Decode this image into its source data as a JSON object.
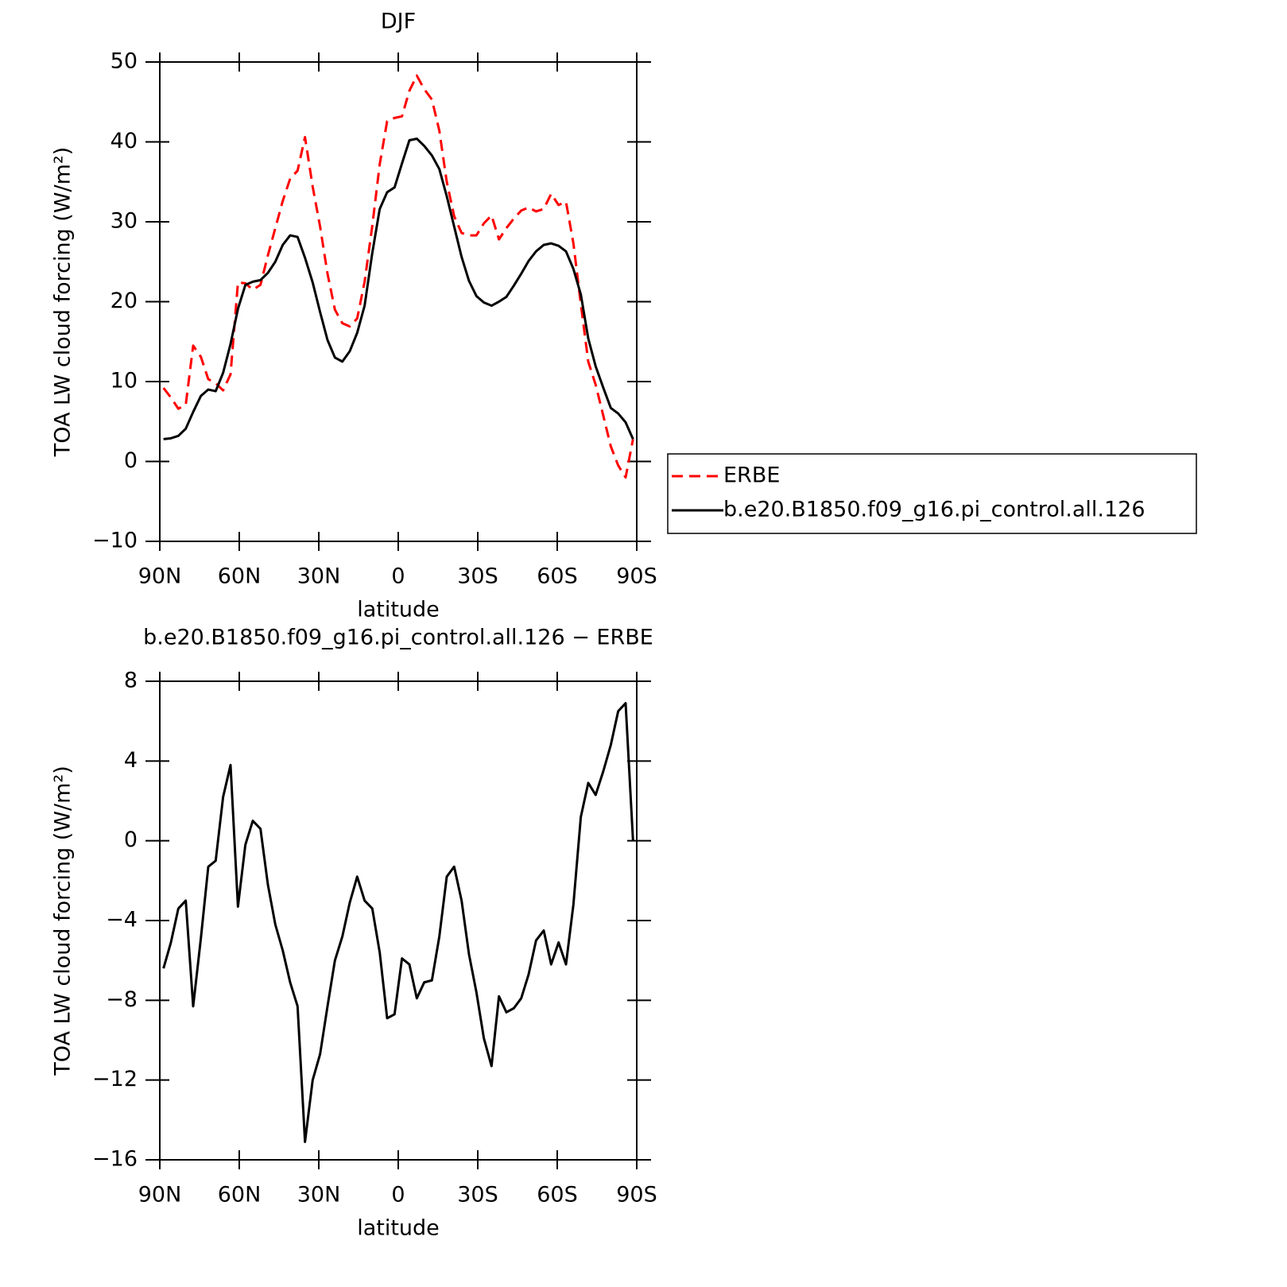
{
  "chart_data": [
    {
      "type": "line",
      "title": "DJF",
      "xlabel": "latitude",
      "ylabel": "TOA LW cloud forcing (W/m²)",
      "xlim": [
        90,
        -90
      ],
      "xticks": [
        {
          "value": 90,
          "label": "90N"
        },
        {
          "value": 60,
          "label": "60N"
        },
        {
          "value": 30,
          "label": "30N"
        },
        0,
        {
          "value": -30,
          "label": "30S"
        },
        {
          "value": -60,
          "label": "60S"
        },
        {
          "value": -90,
          "label": "90S"
        }
      ],
      "ylim": [
        -10,
        50
      ],
      "yticks": [
        {
          "value": -10,
          "label": "−10"
        },
        0,
        10,
        20,
        30,
        40,
        50
      ],
      "legend": "right",
      "x": [
        88.6,
        85.8,
        83.0,
        80.2,
        77.4,
        74.5,
        71.7,
        68.9,
        66.1,
        63.3,
        60.5,
        57.7,
        54.9,
        52.0,
        49.2,
        46.4,
        43.6,
        40.8,
        38.0,
        35.2,
        32.3,
        29.5,
        26.7,
        23.9,
        21.1,
        18.3,
        15.5,
        12.7,
        9.8,
        7.0,
        4.2,
        1.4,
        -1.4,
        -4.2,
        -7.0,
        -9.8,
        -12.7,
        -15.5,
        -18.3,
        -21.1,
        -23.9,
        -26.7,
        -29.5,
        -32.3,
        -35.2,
        -38.0,
        -40.8,
        -43.6,
        -46.4,
        -49.2,
        -52.0,
        -54.9,
        -57.7,
        -60.5,
        -63.3,
        -66.1,
        -68.9,
        -71.7,
        -74.5,
        -77.4,
        -80.2,
        -83.0,
        -85.8,
        -88.6
      ],
      "series": [
        {
          "name": "ERBE",
          "color": "#ff0000",
          "style": "dashed",
          "values": [
            9.2,
            8.0,
            6.6,
            7.1,
            14.5,
            13.1,
            10.3,
            9.8,
            8.9,
            10.9,
            22.4,
            22.3,
            21.5,
            22.1,
            25.8,
            29.2,
            32.6,
            35.4,
            36.4,
            40.6,
            34.4,
            29.4,
            23.5,
            19.0,
            17.3,
            16.9,
            17.9,
            22.5,
            29.5,
            37.2,
            42.6,
            43.0,
            43.2,
            46.4,
            48.3,
            46.6,
            45.3,
            41.4,
            35.0,
            30.7,
            28.6,
            28.3,
            28.3,
            29.8,
            30.8,
            27.8,
            29.2,
            30.4,
            31.4,
            31.8,
            31.3,
            31.6,
            33.5,
            32.1,
            32.5,
            27.3,
            19.7,
            12.5,
            9.6,
            5.7,
            1.9,
            -0.5,
            -2.0,
            2.8
          ]
        },
        {
          "name": "b.e20.B1850.f09_g16.pi_control.all.126",
          "color": "#000000",
          "style": "solid",
          "values": [
            2.8,
            2.9,
            3.2,
            4.1,
            6.2,
            8.2,
            9.0,
            8.8,
            11.1,
            14.7,
            19.1,
            22.1,
            22.5,
            22.7,
            23.6,
            25.0,
            27.1,
            28.3,
            28.1,
            25.5,
            22.4,
            18.7,
            15.2,
            13.0,
            12.5,
            13.8,
            16.1,
            19.5,
            26.1,
            31.6,
            33.7,
            34.3,
            37.3,
            40.2,
            40.4,
            39.5,
            38.3,
            36.6,
            33.2,
            29.4,
            25.6,
            22.6,
            20.7,
            19.9,
            19.5,
            20.0,
            20.6,
            22.0,
            23.5,
            25.1,
            26.3,
            27.1,
            27.3,
            27.0,
            26.3,
            24.1,
            20.9,
            15.4,
            11.9,
            9.2,
            6.7,
            6.0,
            4.9,
            2.8
          ]
        }
      ]
    },
    {
      "type": "line",
      "title": "b.e20.B1850.f09_g16.pi_control.all.126 − ERBE",
      "xlabel": "latitude",
      "ylabel": "TOA LW cloud forcing (W/m²)",
      "xlim": [
        90,
        -90
      ],
      "xticks": [
        {
          "value": 90,
          "label": "90N"
        },
        {
          "value": 60,
          "label": "60N"
        },
        {
          "value": 30,
          "label": "30N"
        },
        0,
        {
          "value": -30,
          "label": "30S"
        },
        {
          "value": -60,
          "label": "60S"
        },
        {
          "value": -90,
          "label": "90S"
        }
      ],
      "ylim": [
        -16,
        8
      ],
      "yticks": [
        {
          "value": -16,
          "label": "−16"
        },
        {
          "value": -12,
          "label": "−12"
        },
        {
          "value": -8,
          "label": "−8"
        },
        {
          "value": -4,
          "label": "−4"
        },
        0,
        4,
        8
      ],
      "color": "#000000",
      "x": [
        88.6,
        85.8,
        83.0,
        80.2,
        77.4,
        74.5,
        71.7,
        68.9,
        66.1,
        63.3,
        60.5,
        57.7,
        54.9,
        52.0,
        49.2,
        46.4,
        43.6,
        40.8,
        38.0,
        35.2,
        32.3,
        29.5,
        26.7,
        23.9,
        21.1,
        18.3,
        15.5,
        12.7,
        9.8,
        7.0,
        4.2,
        1.4,
        -1.4,
        -4.2,
        -7.0,
        -9.8,
        -12.7,
        -15.5,
        -18.3,
        -21.1,
        -23.9,
        -26.7,
        -29.5,
        -32.3,
        -35.2,
        -38.0,
        -40.8,
        -43.6,
        -46.4,
        -49.2,
        -52.0,
        -54.9,
        -57.7,
        -60.5,
        -63.3,
        -66.1,
        -68.9,
        -71.7,
        -74.5,
        -77.4,
        -80.2,
        -83.0,
        -85.8,
        -88.6
      ],
      "values": [
        -6.4,
        -5.1,
        -3.4,
        -3.0,
        -8.3,
        -4.9,
        -1.3,
        -1.0,
        2.2,
        3.8,
        -3.3,
        -0.2,
        1.0,
        0.6,
        -2.2,
        -4.2,
        -5.5,
        -7.1,
        -8.3,
        -15.1,
        -12.0,
        -10.7,
        -8.3,
        -6.0,
        -4.8,
        -3.1,
        -1.8,
        -3.0,
        -3.4,
        -5.6,
        -8.9,
        -8.7,
        -5.9,
        -6.2,
        -7.9,
        -7.1,
        -7.0,
        -4.8,
        -1.8,
        -1.3,
        -3.0,
        -5.7,
        -7.6,
        -9.9,
        -11.3,
        -7.8,
        -8.6,
        -8.4,
        -7.9,
        -6.7,
        -5.0,
        -4.5,
        -6.2,
        -5.1,
        -6.2,
        -3.2,
        1.2,
        2.9,
        2.3,
        3.5,
        4.8,
        6.5,
        6.9,
        0.0
      ]
    }
  ]
}
